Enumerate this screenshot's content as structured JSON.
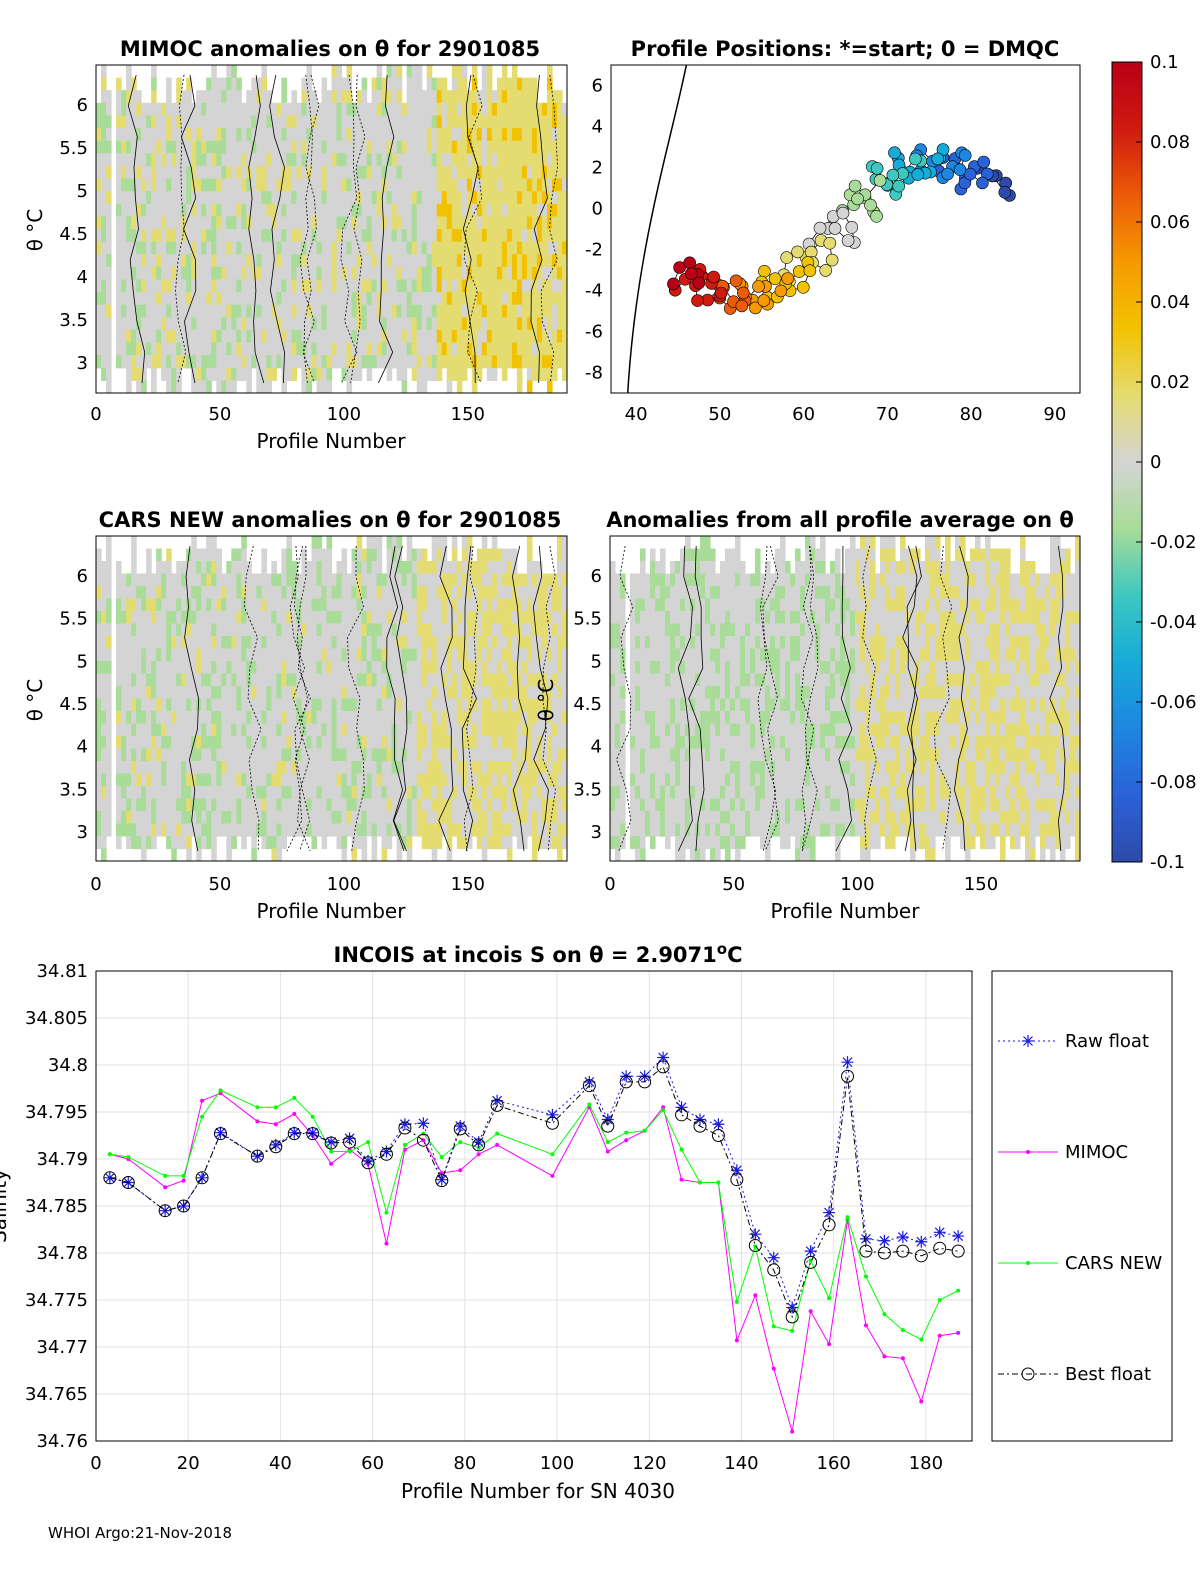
{
  "colors": {
    "raw": "#1a1adf",
    "mimoc": "#ff00ff",
    "cars": "#00ff00",
    "best": "#000000",
    "zero": "#d4d4d4",
    "colormap": [
      "#2e4aa8",
      "#2b62d8",
      "#1e86e0",
      "#16abd8",
      "#3dc8c0",
      "#a8dc98",
      "#d4d4d4",
      "#e4dc70",
      "#f2c200",
      "#f59a00",
      "#ec5b08",
      "#cf1a10",
      "#b80016"
    ]
  },
  "panel_mimoc": {
    "title": "MIMOC anomalies on θ  for 2901085",
    "xlabel": "Profile Number",
    "ylabel": "θ °C",
    "xticks": [
      "0",
      "50",
      "100",
      "150"
    ],
    "yticks": [
      "3",
      "3.5",
      "4",
      "4.5",
      "5",
      "5.5",
      "6"
    ]
  },
  "panel_positions": {
    "title": "Profile Positions: *=start; 0 = DMQC",
    "xticks": [
      "40",
      "50",
      "60",
      "70",
      "80",
      "90"
    ],
    "yticks": [
      "-8",
      "-6",
      "-4",
      "-2",
      "0",
      "2",
      "4",
      "6"
    ]
  },
  "panel_cars": {
    "title": "CARS NEW anomalies on θ for 2901085",
    "xlabel": "Profile Number",
    "ylabel": "θ °C",
    "xticks": [
      "0",
      "50",
      "100",
      "150"
    ],
    "yticks": [
      "3",
      "3.5",
      "4",
      "4.5",
      "5",
      "5.5",
      "6"
    ]
  },
  "panel_allavg": {
    "title": "Anomalies from all profile average on θ",
    "xlabel": "Profile Number",
    "ylabel": "θ °C",
    "xticks": [
      "0",
      "50",
      "100",
      "150"
    ],
    "yticks": [
      "3",
      "3.5",
      "4",
      "4.5",
      "5",
      "5.5",
      "6"
    ]
  },
  "colorbar": {
    "labels": [
      "0.1",
      "0.08",
      "0.06",
      "0.04",
      "0.02",
      "0",
      "-0.02",
      "-0.04",
      "-0.06",
      "-0.08",
      "-0.1"
    ]
  },
  "chart_data": {
    "type": "line",
    "title": "INCOIS at incois S on θ = 2.9071°C",
    "title_main": "INCOIS at incois S on θ = 2.9071",
    "title_sup": "o",
    "title_unit": "C",
    "xlabel": "Profile Number for SN 4030",
    "ylabel": "Salinity",
    "xlim": [
      0,
      190
    ],
    "ylim": [
      34.76,
      34.81
    ],
    "xticks": [
      0,
      20,
      40,
      60,
      80,
      100,
      120,
      140,
      160,
      180
    ],
    "yticks": [
      34.76,
      34.765,
      34.77,
      34.775,
      34.78,
      34.785,
      34.79,
      34.795,
      34.8,
      34.805,
      34.81
    ],
    "grid": true,
    "legend": "right",
    "series": [
      {
        "name": "Raw float",
        "x": [
          3,
          7,
          15,
          19,
          23,
          27,
          35,
          39,
          43,
          47,
          51,
          55,
          59,
          63,
          67,
          71,
          75,
          79,
          83,
          87,
          99,
          107,
          111,
          115,
          119,
          123,
          127,
          131,
          135,
          139,
          143,
          147,
          151,
          155,
          159,
          163,
          167,
          171,
          175,
          179,
          183,
          187
        ],
        "values": [
          34.788,
          34.7875,
          34.7845,
          34.785,
          34.788,
          34.7928,
          34.7903,
          34.7915,
          34.7928,
          34.7928,
          34.7918,
          34.7922,
          34.7898,
          34.7908,
          34.7937,
          34.7938,
          34.7878,
          34.7935,
          34.7918,
          34.7962,
          34.7947,
          34.7982,
          34.7942,
          34.7988,
          34.7988,
          34.8008,
          34.7955,
          34.7942,
          34.7937,
          34.7888,
          34.782,
          34.7795,
          34.7742,
          34.7802,
          34.7843,
          34.8003,
          34.7815,
          34.7813,
          34.7817,
          34.7812,
          34.7822,
          34.7818
        ]
      },
      {
        "name": "MIMOC",
        "x": [
          3,
          7,
          15,
          19,
          23,
          27,
          35,
          39,
          43,
          47,
          51,
          55,
          59,
          63,
          67,
          71,
          75,
          79,
          83,
          87,
          99,
          107,
          111,
          115,
          119,
          123,
          127,
          131,
          135,
          139,
          143,
          147,
          151,
          155,
          159,
          163,
          167,
          171,
          175,
          179,
          183,
          187
        ],
        "values": [
          34.7905,
          34.79,
          34.787,
          34.7877,
          34.7962,
          34.797,
          34.794,
          34.7937,
          34.7948,
          34.7925,
          34.7895,
          34.791,
          34.7895,
          34.781,
          34.791,
          34.792,
          34.7885,
          34.7888,
          34.7905,
          34.7915,
          34.7882,
          34.7955,
          34.7908,
          34.792,
          34.793,
          34.7955,
          34.7878,
          34.7875,
          34.7875,
          34.7707,
          34.7755,
          34.7677,
          34.761,
          34.7738,
          34.7703,
          34.7835,
          34.7723,
          34.769,
          34.7688,
          34.7642,
          34.7712,
          34.7715
        ]
      },
      {
        "name": "CARS NEW",
        "x": [
          3,
          7,
          15,
          19,
          23,
          27,
          35,
          39,
          43,
          47,
          51,
          55,
          59,
          63,
          67,
          71,
          75,
          79,
          83,
          87,
          99,
          107,
          111,
          115,
          119,
          123,
          127,
          131,
          135,
          139,
          143,
          147,
          151,
          155,
          159,
          163,
          167,
          171,
          175,
          179,
          183,
          187
        ],
        "values": [
          34.7905,
          34.7902,
          34.7882,
          34.7882,
          34.7945,
          34.7973,
          34.7955,
          34.7955,
          34.7965,
          34.7945,
          34.7908,
          34.7908,
          34.7918,
          34.7843,
          34.7915,
          34.7927,
          34.7902,
          34.7918,
          34.7912,
          34.7927,
          34.7905,
          34.7958,
          34.7918,
          34.7928,
          34.793,
          34.7952,
          34.791,
          34.7875,
          34.7875,
          34.7748,
          34.7807,
          34.7722,
          34.7717,
          34.7792,
          34.7752,
          34.7838,
          34.7775,
          34.7735,
          34.7718,
          34.7708,
          34.775,
          34.776
        ]
      },
      {
        "name": "Best float",
        "x": [
          3,
          7,
          15,
          19,
          23,
          27,
          35,
          39,
          43,
          47,
          51,
          55,
          59,
          63,
          67,
          71,
          75,
          79,
          83,
          87,
          99,
          107,
          111,
          115,
          119,
          123,
          127,
          131,
          135,
          139,
          143,
          147,
          151,
          155,
          159,
          163,
          167,
          171,
          175,
          179,
          183,
          187
        ],
        "values": [
          34.788,
          34.7875,
          34.7845,
          34.785,
          34.788,
          34.7927,
          34.7903,
          34.7913,
          34.7927,
          34.7927,
          34.7917,
          34.7918,
          34.7896,
          34.7905,
          34.7933,
          34.792,
          34.7877,
          34.7932,
          34.7915,
          34.7957,
          34.7938,
          34.7978,
          34.7935,
          34.7982,
          34.7982,
          34.7998,
          34.7947,
          34.7935,
          34.7925,
          34.7878,
          34.7808,
          34.7782,
          34.7732,
          34.779,
          34.783,
          34.7988,
          34.7802,
          34.78,
          34.7802,
          34.7797,
          34.7805,
          34.7802
        ]
      }
    ]
  },
  "footer": {
    "text": "WHOI Argo:21-Nov-2018"
  }
}
